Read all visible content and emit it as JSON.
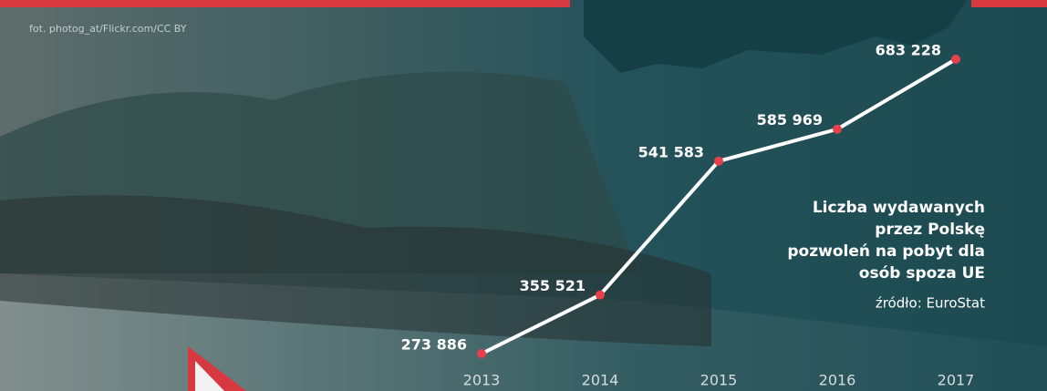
{
  "chart_data": {
    "type": "line",
    "credit": "fot. photog_at/Flickr.com/CC BY",
    "title_lines": [
      "Liczba wydawanych",
      "przez Polskę",
      "pozwoleń na pobyt dla",
      "osób spoza UE"
    ],
    "source": "źródło: EuroStat",
    "categories": [
      "2013",
      "2014",
      "2015",
      "2016",
      "2017"
    ],
    "values": [
      273886,
      355521,
      541583,
      585969,
      683228
    ],
    "value_labels": [
      "273 886",
      "355 521",
      "541 583",
      "585 969",
      "683 228"
    ],
    "color": "#ffffff",
    "marker_color": "#e8404a"
  }
}
